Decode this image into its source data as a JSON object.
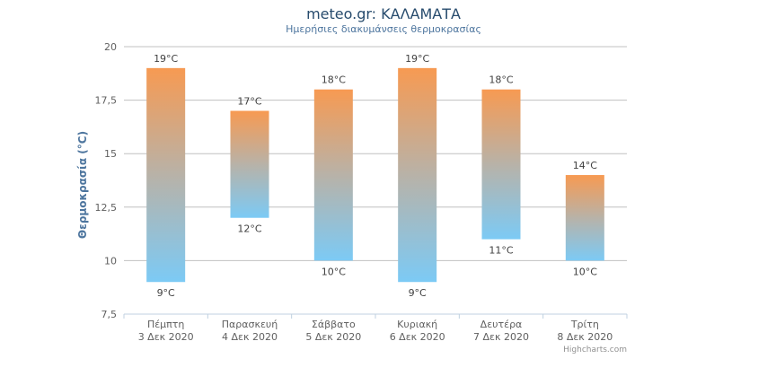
{
  "chart_data": {
    "type": "columnrange",
    "title": "meteo.gr: ΚΑΛΑΜΑΤΑ",
    "subtitle": "Ημερήσιες διακυμάνσεις θερμοκρασίας",
    "ylabel": "Θερμοκρασία (°C)",
    "ylim": [
      7.5,
      20
    ],
    "yticks": [
      7.5,
      10,
      12.5,
      15,
      17.5,
      20
    ],
    "ytick_labels": [
      "7,5",
      "10",
      "12,5",
      "15",
      "17,5",
      "20"
    ],
    "unit": "°C",
    "grid": true,
    "categories": [
      {
        "day": "Πέμπτη",
        "date": "3 Δεκ 2020"
      },
      {
        "day": "Παρασκευή",
        "date": "4 Δεκ 2020"
      },
      {
        "day": "Σάββατο",
        "date": "5 Δεκ 2020"
      },
      {
        "day": "Κυριακή",
        "date": "6 Δεκ 2020"
      },
      {
        "day": "Δευτέρα",
        "date": "7 Δεκ 2020"
      },
      {
        "day": "Τρίτη",
        "date": "8 Δεκ 2020"
      }
    ],
    "low": [
      9,
      12,
      10,
      9,
      11,
      10
    ],
    "high": [
      19,
      17,
      18,
      19,
      18,
      14
    ],
    "colors": {
      "low": "#7ccaf5",
      "high": "#f79a52"
    }
  },
  "credit": "Highcharts.com"
}
